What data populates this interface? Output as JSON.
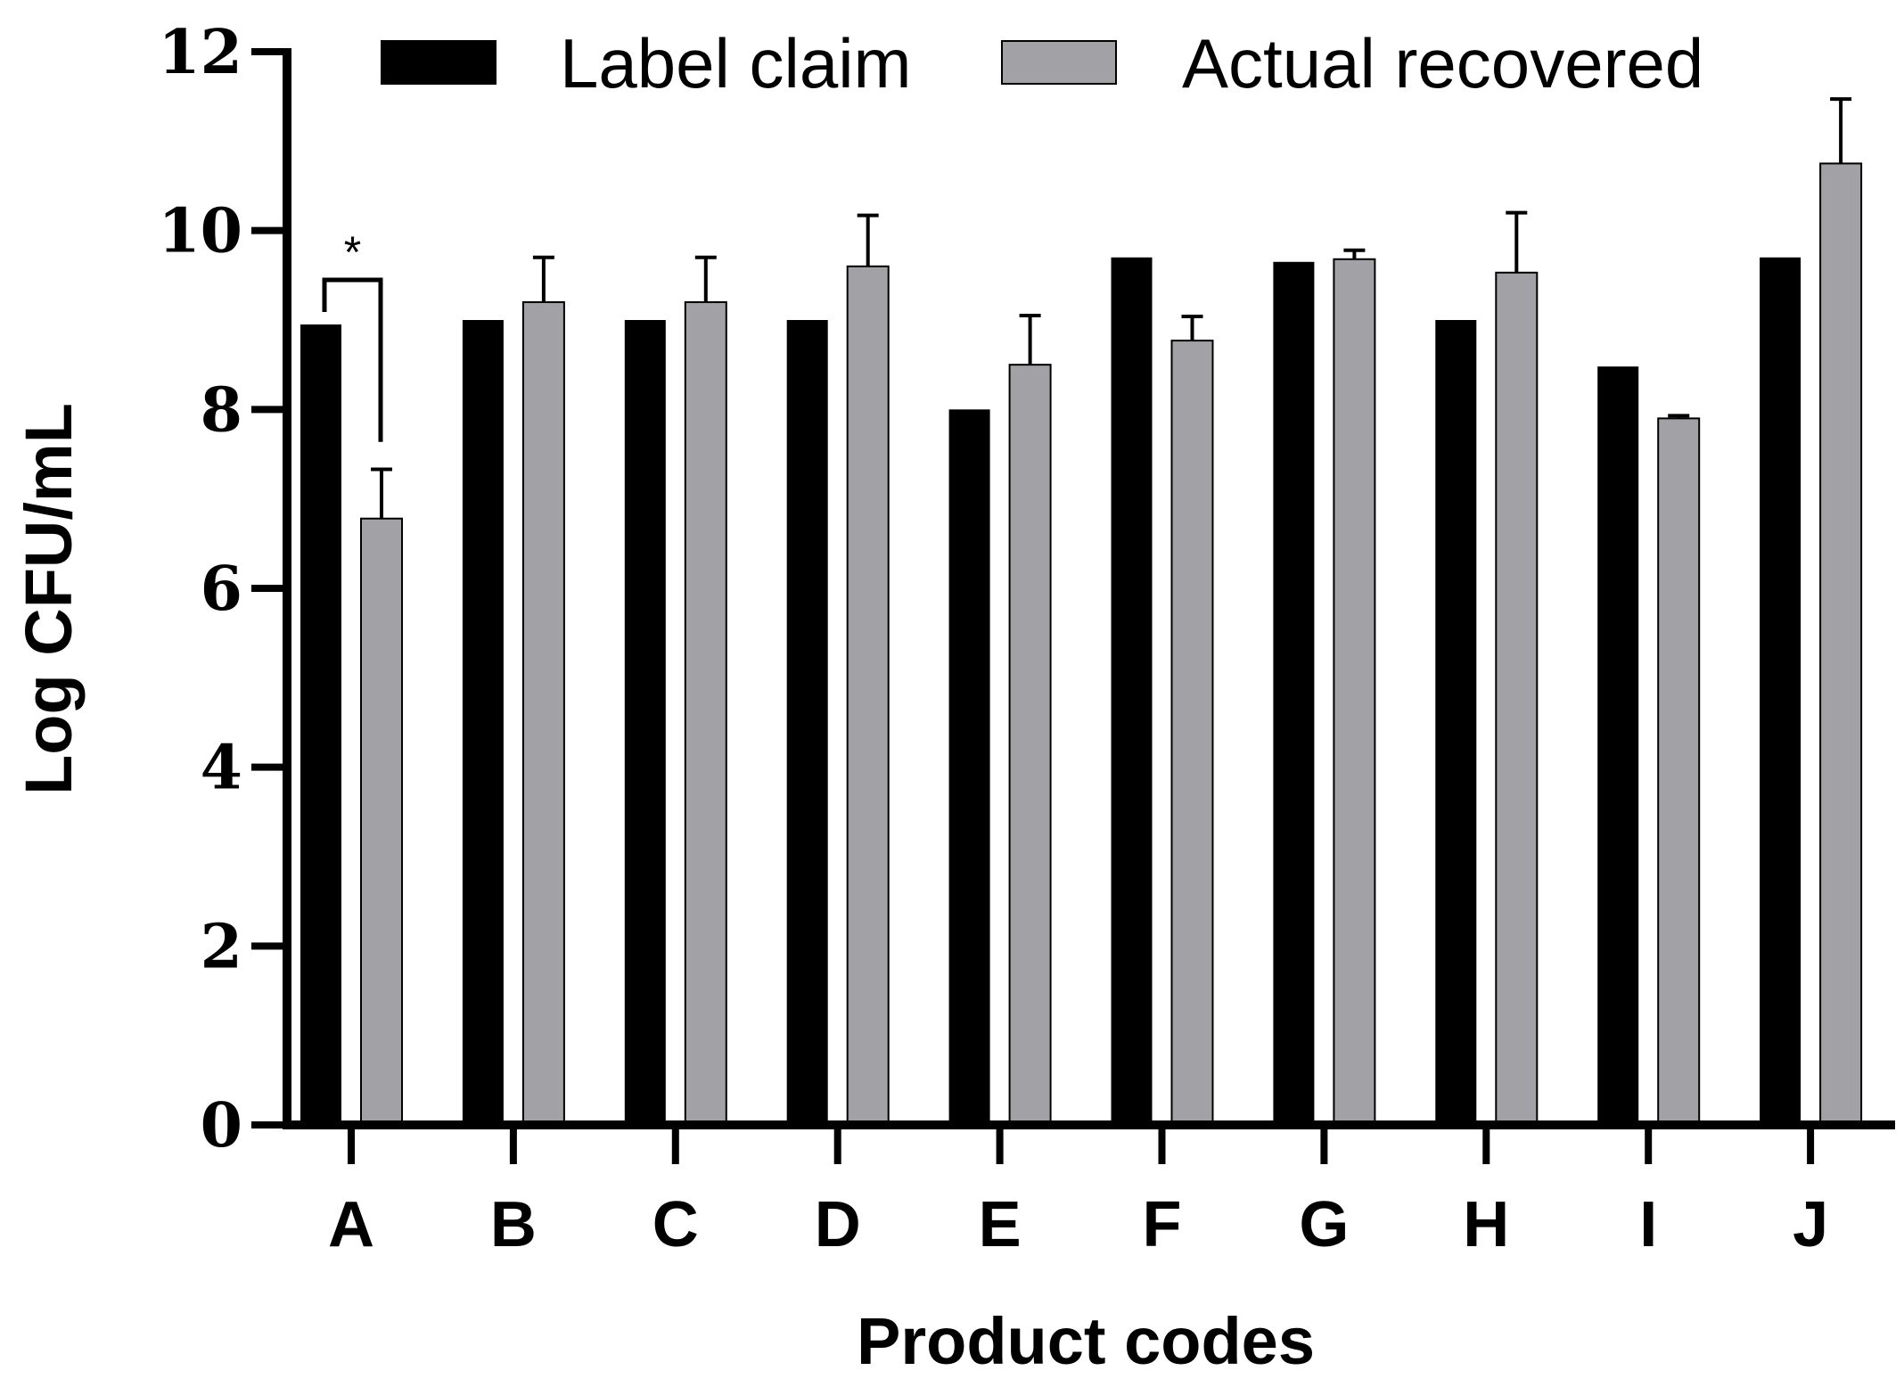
{
  "chart_data": {
    "type": "bar",
    "title": "",
    "xlabel": "Product codes",
    "ylabel": "Log CFU/mL",
    "ylim": [
      0,
      12
    ],
    "yticks": [
      0,
      2,
      4,
      6,
      8,
      10,
      12
    ],
    "grid": false,
    "legend_position": "top",
    "categories": [
      "A",
      "B",
      "C",
      "D",
      "E",
      "F",
      "G",
      "H",
      "I",
      "J"
    ],
    "series": [
      {
        "name": "Label claim",
        "color": "#000000",
        "values": [
          8.95,
          9.0,
          9.0,
          9.0,
          8.0,
          9.7,
          9.65,
          9.0,
          8.48,
          9.7
        ],
        "errors": [
          0,
          0,
          0,
          0,
          0,
          0,
          0,
          0,
          0,
          0
        ]
      },
      {
        "name": "Actual recovered",
        "color": "#a2a1a6",
        "values": [
          6.78,
          9.2,
          9.2,
          9.6,
          8.5,
          8.77,
          9.68,
          9.53,
          7.9,
          10.75
        ],
        "errors": [
          0.55,
          0.5,
          0.5,
          0.57,
          0.55,
          0.27,
          0.1,
          0.67,
          0.03,
          0.72
        ]
      }
    ],
    "annotations": [
      {
        "type": "significance",
        "category": "A",
        "text": "*"
      }
    ]
  }
}
